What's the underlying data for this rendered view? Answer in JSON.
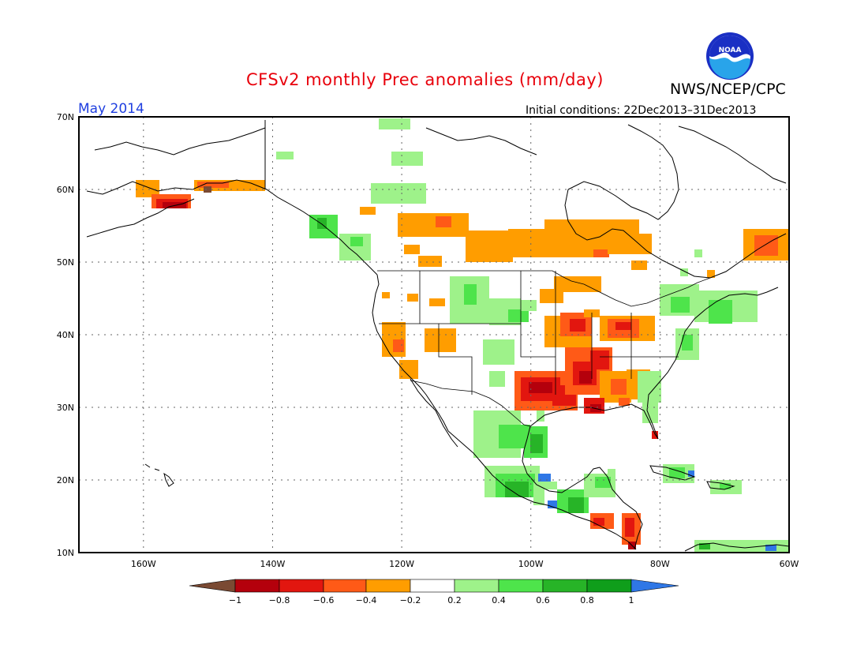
{
  "header": {
    "title": "CFSv2 monthly Prec anomalies (mm/day)",
    "agency": "NWS/NCEP/CPC",
    "month": "May 2014",
    "initial_conditions": "Initial conditions: 22Dec2013–31Dec2013",
    "logo_text": "NOAA"
  },
  "map": {
    "lon_range": [
      -170,
      -60
    ],
    "lat_range": [
      10,
      70
    ],
    "lat_labels": [
      "70N",
      "60N",
      "50N",
      "40N",
      "30N",
      "20N",
      "10N"
    ],
    "lon_labels": [
      "160W",
      "140W",
      "120W",
      "100W",
      "80W",
      "60W"
    ]
  },
  "colorbar": {
    "labels": [
      "−1",
      "−0.8",
      "−0.6",
      "−0.4",
      "−0.2",
      "0.2",
      "0.4",
      "0.6",
      "0.8",
      "1"
    ],
    "colors": [
      "#7a4a33",
      "#b4000c",
      "#e2160f",
      "#ff5a17",
      "#ff9d00",
      "#ffffff",
      "#9ef28a",
      "#4ee44b",
      "#27b427",
      "#0f9e1b",
      "#2f77e6"
    ]
  }
}
